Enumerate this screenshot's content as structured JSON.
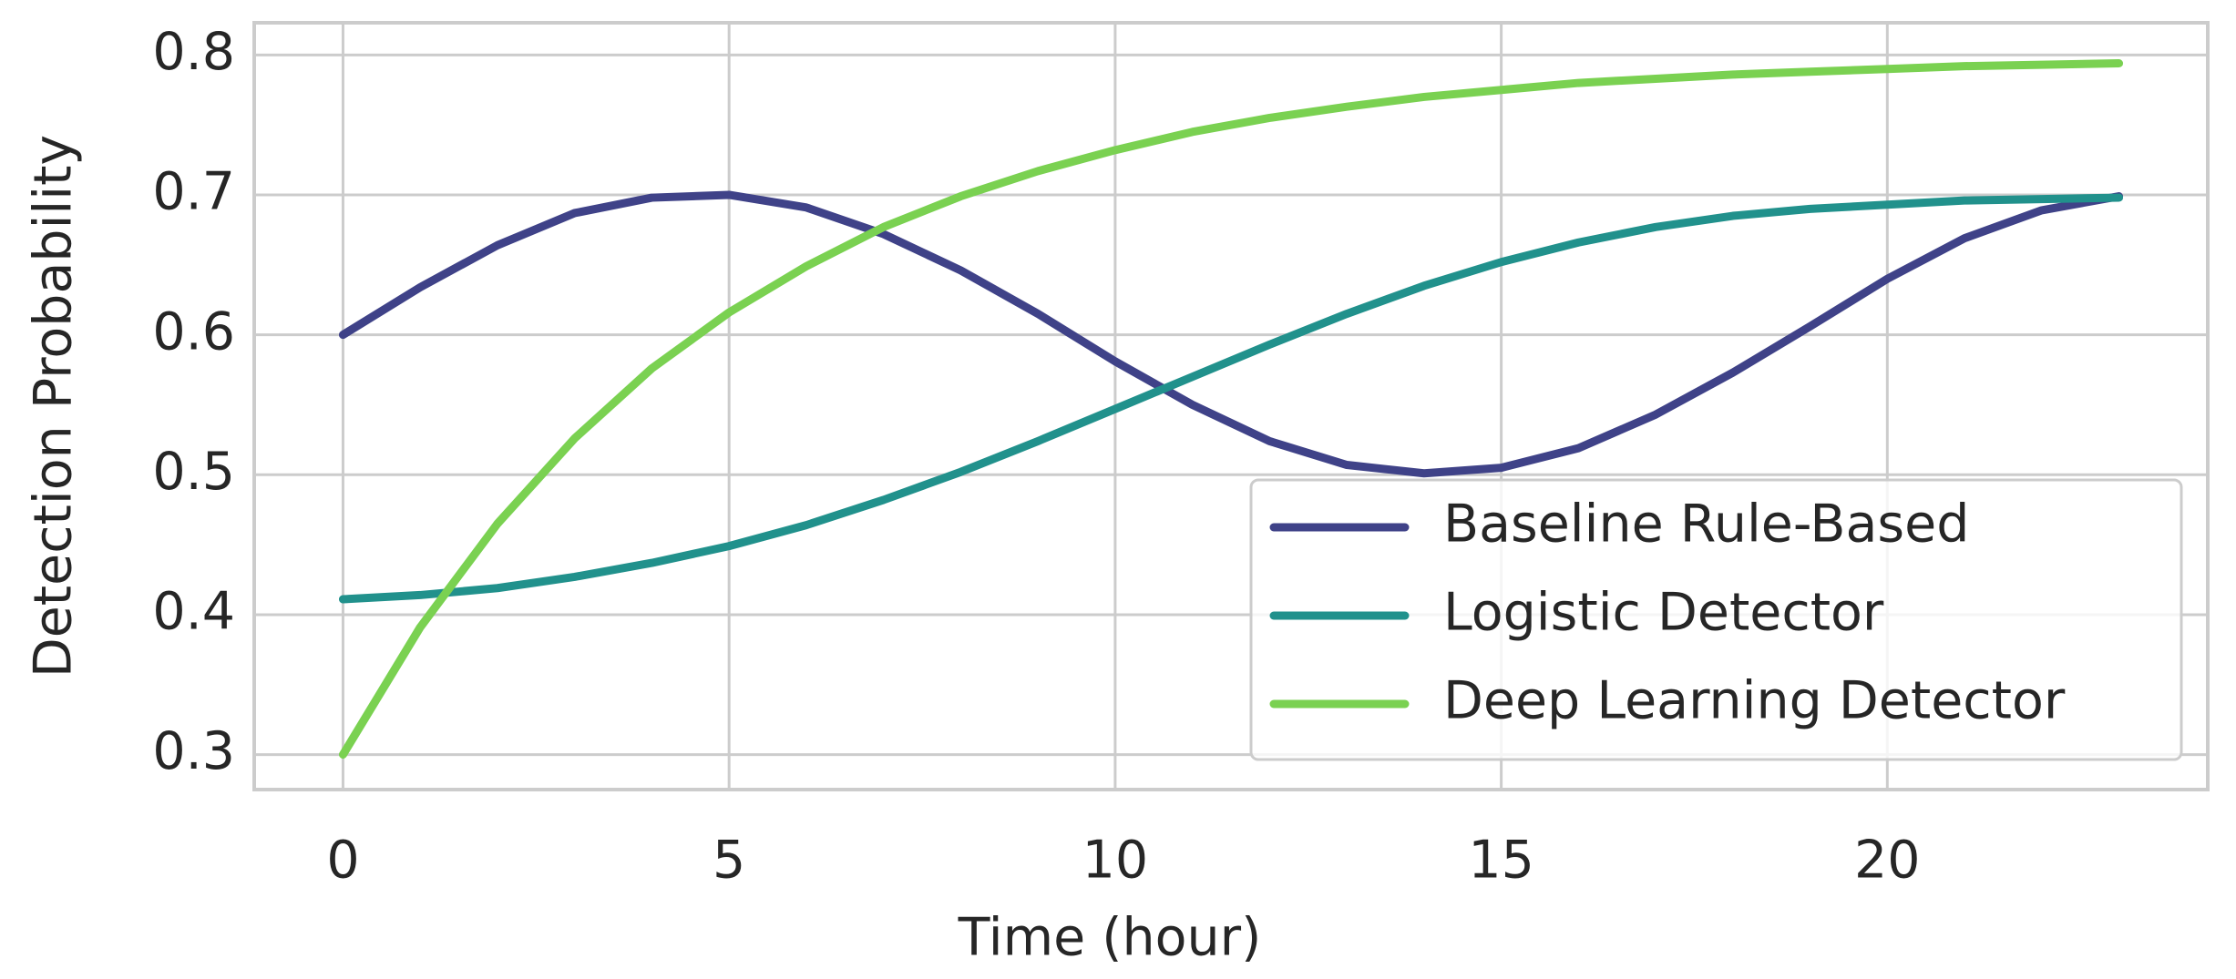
{
  "chart_data": {
    "type": "line",
    "xlabel": "Time (hour)",
    "ylabel": "Detection Probability",
    "x": [
      0,
      1,
      2,
      3,
      4,
      5,
      6,
      7,
      8,
      9,
      10,
      11,
      12,
      13,
      14,
      15,
      16,
      17,
      18,
      19,
      20,
      21,
      22,
      23
    ],
    "series": [
      {
        "name": "Baseline Rule-Based",
        "color": "#3f4288",
        "values": [
          0.6,
          0.634,
          0.664,
          0.687,
          0.698,
          0.7,
          0.691,
          0.672,
          0.646,
          0.615,
          0.581,
          0.55,
          0.524,
          0.507,
          0.501,
          0.505,
          0.519,
          0.543,
          0.573,
          0.606,
          0.64,
          0.669,
          0.689,
          0.699
        ]
      },
      {
        "name": "Logistic Detector",
        "color": "#21918c",
        "values": [
          0.411,
          0.414,
          0.419,
          0.427,
          0.437,
          0.449,
          0.464,
          0.482,
          0.502,
          0.524,
          0.547,
          0.57,
          0.593,
          0.615,
          0.635,
          0.652,
          0.666,
          0.677,
          0.685,
          0.69,
          0.693,
          0.696,
          0.697,
          0.698
        ]
      },
      {
        "name": "Deep Learning Detector",
        "color": "#7ad151",
        "values": [
          0.3,
          0.391,
          0.465,
          0.526,
          0.576,
          0.616,
          0.649,
          0.677,
          0.699,
          0.717,
          0.732,
          0.745,
          0.755,
          0.763,
          0.77,
          0.775,
          0.78,
          0.783,
          0.786,
          0.788,
          0.79,
          0.792,
          0.793,
          0.794
        ]
      }
    ],
    "xlim": [
      -1.15,
      24.15
    ],
    "xticks": [
      0,
      5,
      10,
      15,
      20
    ],
    "ylim": [
      0.275,
      0.823
    ],
    "yticks": [
      0.3,
      0.4,
      0.5,
      0.6,
      0.7,
      0.8
    ],
    "grid": true,
    "legend": "lower right"
  }
}
